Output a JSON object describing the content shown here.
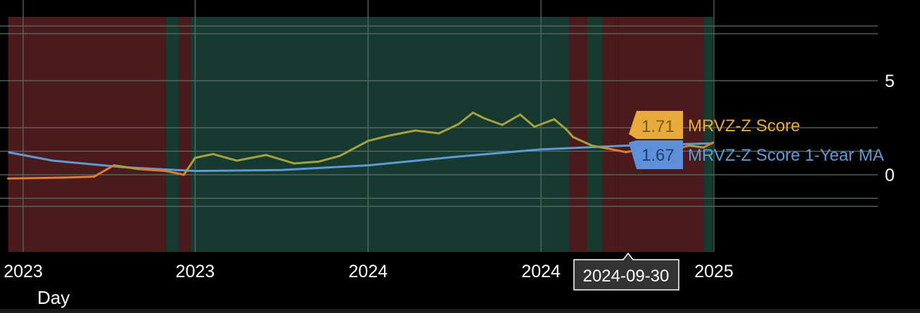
{
  "chart_data": {
    "type": "line",
    "title": "",
    "xlabel": "",
    "ylabel": "",
    "x_range": [
      "2022-10-01",
      "2025-04-15"
    ],
    "ylim": [
      -2.5,
      9
    ],
    "y_ticks": [
      {
        "label": "5",
        "value": 5
      },
      {
        "label": "0",
        "value": 0
      }
    ],
    "x_ticks": [
      {
        "label": "2023",
        "date": "2022-10-01"
      },
      {
        "label": "2023",
        "date": "2023-04-01"
      },
      {
        "label": "2024",
        "date": "2023-10-01"
      },
      {
        "label": "2024",
        "date": "2024-04-01"
      },
      {
        "label": "2025",
        "date": "2024-10-01"
      }
    ],
    "unit_label": "Day",
    "crosshair_date": "2024-09-30",
    "grid": true,
    "legend": "right-inline-labels",
    "colors": {
      "background": "#000000",
      "grid": "#5c6e66",
      "zone_red": "#4a1a1d",
      "zone_green": "#163a30",
      "score_high": "#a5a13c",
      "score_low": "#e07a2e",
      "ma": "#5e9bd4",
      "badge_score": "#e8aa3a",
      "badge_ma": "#5e8fd9"
    },
    "zones": [
      {
        "start": "2022-09-15",
        "end": "2023-03-01",
        "state": "red"
      },
      {
        "start": "2023-03-01",
        "end": "2023-03-15",
        "state": "green"
      },
      {
        "start": "2023-03-15",
        "end": "2023-03-27",
        "state": "red"
      },
      {
        "start": "2023-03-27",
        "end": "2024-05-01",
        "state": "green"
      },
      {
        "start": "2024-05-01",
        "end": "2024-05-20",
        "state": "red"
      },
      {
        "start": "2024-05-20",
        "end": "2024-06-05",
        "state": "green"
      },
      {
        "start": "2024-06-05",
        "end": "2024-06-22",
        "state": "red"
      },
      {
        "start": "2024-06-22",
        "end": "2024-09-20",
        "state": "red"
      },
      {
        "start": "2024-09-20",
        "end": "2024-09-30",
        "state": "green"
      }
    ],
    "series": [
      {
        "name": "MRVZ-Z Score",
        "last_value": "1.71",
        "x": [
          "2022-09-15",
          "2022-11-15",
          "2022-12-15",
          "2023-01-05",
          "2023-02-01",
          "2023-03-01",
          "2023-03-20",
          "2023-04-01",
          "2023-04-20",
          "2023-05-15",
          "2023-06-15",
          "2023-07-15",
          "2023-08-10",
          "2023-09-01",
          "2023-10-01",
          "2023-10-25",
          "2023-11-20",
          "2023-12-15",
          "2024-01-05",
          "2024-01-20",
          "2024-02-01",
          "2024-02-20",
          "2024-03-10",
          "2024-03-25",
          "2024-04-15",
          "2024-04-28",
          "2024-05-05",
          "2024-05-25",
          "2024-06-10",
          "2024-06-30",
          "2024-07-15",
          "2024-08-01",
          "2024-08-20",
          "2024-09-05",
          "2024-09-20",
          "2024-09-30"
        ],
        "y": [
          -0.2,
          -0.15,
          -0.1,
          0.5,
          0.3,
          0.2,
          0.0,
          0.9,
          1.1,
          0.75,
          1.05,
          0.6,
          0.7,
          1.0,
          1.8,
          2.1,
          2.35,
          2.2,
          2.7,
          3.3,
          3.0,
          2.65,
          3.2,
          2.55,
          2.95,
          2.4,
          2.0,
          1.55,
          1.4,
          1.2,
          1.35,
          1.5,
          1.35,
          1.55,
          1.45,
          1.71
        ]
      },
      {
        "name": "MRVZ-Z Score 1-Year MA",
        "last_value": "1.67",
        "x": [
          "2022-09-15",
          "2022-11-01",
          "2023-01-15",
          "2023-04-01",
          "2023-07-01",
          "2023-10-01",
          "2024-01-01",
          "2024-04-01",
          "2024-07-01",
          "2024-09-30"
        ],
        "y": [
          1.2,
          0.75,
          0.4,
          0.2,
          0.25,
          0.5,
          0.95,
          1.35,
          1.55,
          1.67
        ]
      }
    ]
  }
}
